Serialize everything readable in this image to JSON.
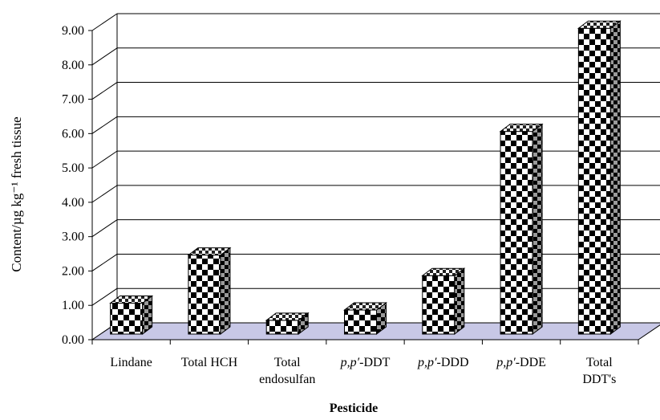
{
  "chart_data": {
    "type": "bar",
    "title": "",
    "xlabel": "Pesticide",
    "ylabel": "Content/µg kg⁻¹ fresh tissue",
    "ylim": [
      0,
      9
    ],
    "yticks": [
      "0.00",
      "1.00",
      "2.00",
      "3.00",
      "4.00",
      "5.00",
      "6.00",
      "7.00",
      "8.00",
      "9.00"
    ],
    "categories": [
      {
        "italic": "",
        "rest": "Lindane",
        "line2": ""
      },
      {
        "italic": "",
        "rest": "Total HCH",
        "line2": ""
      },
      {
        "italic": "",
        "rest": "Total",
        "line2": "endosulfan"
      },
      {
        "italic": "p,p′",
        "rest": "-DDT",
        "line2": ""
      },
      {
        "italic": "p,p′",
        "rest": "-DDD",
        "line2": ""
      },
      {
        "italic": "p,p′",
        "rest": "-DDE",
        "line2": ""
      },
      {
        "italic": "",
        "rest": "Total",
        "line2": "DDT's"
      }
    ],
    "values": [
      0.9,
      2.3,
      0.4,
      0.7,
      1.7,
      5.9,
      8.9
    ],
    "grid": true,
    "bar_pattern": "black-white checkerboard",
    "floor_color": "#C8C8E6"
  }
}
